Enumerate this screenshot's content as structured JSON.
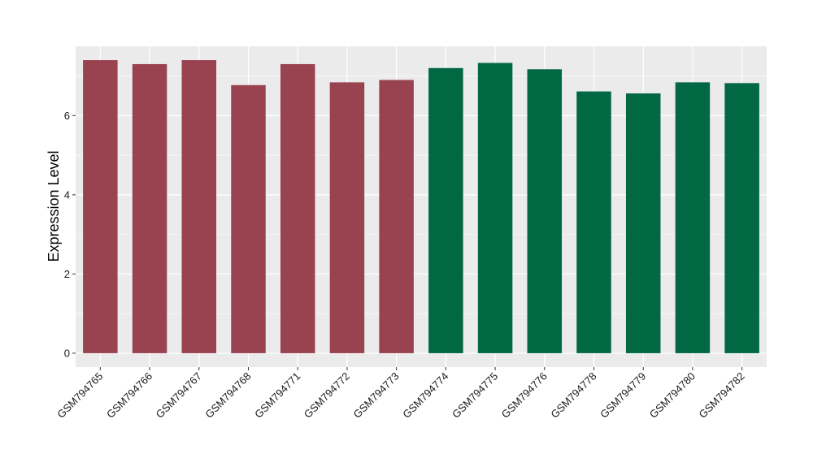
{
  "chart_data": {
    "type": "bar",
    "title": "",
    "xlabel": "",
    "ylabel": "Expression Level",
    "ylim": [
      -0.35,
      7.75
    ],
    "yticks": [
      0,
      2,
      4,
      6
    ],
    "grid": true,
    "legend": "none",
    "categories": [
      "GSM794765",
      "GSM794766",
      "GSM794767",
      "GSM794768",
      "GSM794771",
      "GSM794772",
      "GSM794773",
      "GSM794774",
      "GSM794775",
      "GSM794776",
      "GSM794778",
      "GSM794779",
      "GSM794780",
      "GSM794782"
    ],
    "values": [
      7.4,
      7.3,
      7.4,
      6.77,
      7.3,
      6.84,
      6.9,
      7.2,
      7.33,
      7.17,
      6.61,
      6.56,
      6.84,
      6.82
    ],
    "group_index": [
      0,
      0,
      0,
      0,
      0,
      0,
      0,
      1,
      1,
      1,
      1,
      1,
      1,
      1
    ],
    "group_colors": [
      "#994350",
      "#016843"
    ],
    "panel_background": "#ebebeb",
    "grid_color": "#ffffff"
  }
}
